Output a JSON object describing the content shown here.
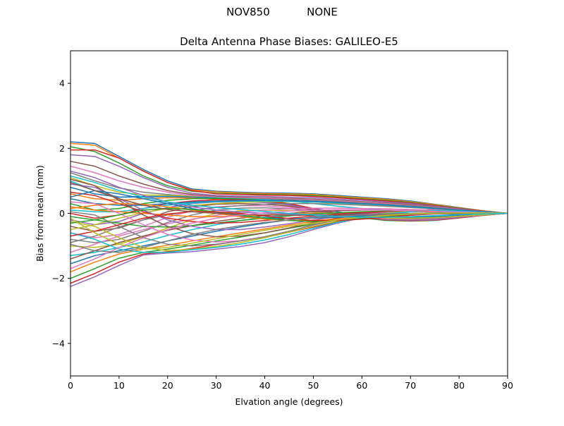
{
  "figure": {
    "suptitle": "NOV850           NONE"
  },
  "chart_data": {
    "type": "line",
    "title": "Delta Antenna Phase Biases: GALILEO-E5",
    "xlabel": "Elvation angle (degrees)",
    "ylabel": "Bias from mean (mm)",
    "xlim": [
      0,
      90
    ],
    "ylim": [
      -5,
      5
    ],
    "xticks": [
      0,
      10,
      20,
      30,
      40,
      50,
      60,
      70,
      80,
      90
    ],
    "yticks": [
      -4,
      -2,
      0,
      2,
      4
    ],
    "ytick_labels": [
      "−4",
      "−2",
      "0",
      "2",
      "4"
    ],
    "grid": false,
    "legend": "none",
    "x": [
      0,
      5,
      10,
      15,
      20,
      25,
      30,
      35,
      40,
      45,
      50,
      55,
      60,
      65,
      70,
      75,
      80,
      85,
      90
    ],
    "colors": [
      "#1f77b4",
      "#ff7f0e",
      "#2ca02c",
      "#d62728",
      "#9467bd",
      "#8c564b",
      "#e377c2",
      "#7f7f7f",
      "#bcbd22",
      "#17becf"
    ],
    "series": [
      {
        "values": [
          2.2,
          2.15,
          1.75,
          1.35,
          1.0,
          0.75,
          0.68,
          0.65,
          0.63,
          0.62,
          0.6,
          0.55,
          0.5,
          0.45,
          0.38,
          0.28,
          0.18,
          0.08,
          0.0
        ]
      },
      {
        "values": [
          2.15,
          2.1,
          1.7,
          1.3,
          0.95,
          0.72,
          0.66,
          0.63,
          0.61,
          0.6,
          0.58,
          0.53,
          0.48,
          0.43,
          0.36,
          0.27,
          0.17,
          0.08,
          0.0
        ]
      },
      {
        "values": [
          2.05,
          1.9,
          1.55,
          1.15,
          0.85,
          0.68,
          0.62,
          0.6,
          0.58,
          0.57,
          0.55,
          0.5,
          0.45,
          0.4,
          0.34,
          0.25,
          0.16,
          0.07,
          0.0
        ]
      },
      {
        "values": [
          1.95,
          1.95,
          1.7,
          1.3,
          0.95,
          0.7,
          0.6,
          0.58,
          0.56,
          0.55,
          0.52,
          0.48,
          0.43,
          0.38,
          0.32,
          0.24,
          0.15,
          0.07,
          0.0
        ]
      },
      {
        "values": [
          1.8,
          1.75,
          1.45,
          1.1,
          0.8,
          0.62,
          0.55,
          0.53,
          0.52,
          0.5,
          0.48,
          0.44,
          0.4,
          0.35,
          0.3,
          0.22,
          0.14,
          0.06,
          0.0
        ]
      },
      {
        "values": [
          1.6,
          1.45,
          1.15,
          0.9,
          0.7,
          0.58,
          0.52,
          0.5,
          0.48,
          0.46,
          0.44,
          0.4,
          0.36,
          0.32,
          0.27,
          0.2,
          0.13,
          0.06,
          0.0
        ]
      },
      {
        "values": [
          1.45,
          1.25,
          1.0,
          0.8,
          0.65,
          0.55,
          0.5,
          0.48,
          0.46,
          0.44,
          0.42,
          0.38,
          0.34,
          0.3,
          0.25,
          0.19,
          0.12,
          0.05,
          0.0
        ]
      },
      {
        "values": [
          1.25,
          1.0,
          0.78,
          0.65,
          0.58,
          0.52,
          0.48,
          0.46,
          0.44,
          0.42,
          0.4,
          0.36,
          0.32,
          0.28,
          0.24,
          0.18,
          0.11,
          0.05,
          0.0
        ]
      },
      {
        "values": [
          1.1,
          0.85,
          0.65,
          0.57,
          0.55,
          0.52,
          0.46,
          0.43,
          0.4,
          0.38,
          0.35,
          0.3,
          0.26,
          0.22,
          0.18,
          0.14,
          0.09,
          0.04,
          0.0
        ]
      },
      {
        "values": [
          1.0,
          0.7,
          0.5,
          0.5,
          0.52,
          0.5,
          0.48,
          0.45,
          0.42,
          0.38,
          0.3,
          0.22,
          0.15,
          0.1,
          0.06,
          0.04,
          0.02,
          0.01,
          0.0
        ]
      },
      {
        "values": [
          0.8,
          0.6,
          0.5,
          0.52,
          0.52,
          0.5,
          0.47,
          0.42,
          0.36,
          0.28,
          0.15,
          0.05,
          -0.05,
          -0.1,
          -0.12,
          -0.1,
          -0.06,
          -0.02,
          0.0
        ]
      },
      {
        "values": [
          0.6,
          0.45,
          0.4,
          0.45,
          0.48,
          0.47,
          0.44,
          0.4,
          0.34,
          0.25,
          0.1,
          -0.05,
          -0.15,
          -0.2,
          -0.22,
          -0.2,
          -0.12,
          -0.05,
          0.0
        ]
      },
      {
        "values": [
          0.3,
          0.1,
          0.15,
          0.3,
          0.4,
          0.45,
          0.46,
          0.44,
          0.4,
          0.3,
          0.15,
          -0.02,
          -0.14,
          -0.22,
          -0.24,
          -0.22,
          -0.14,
          -0.06,
          0.0
        ]
      },
      {
        "values": [
          0.0,
          -0.15,
          -0.05,
          0.15,
          0.3,
          0.38,
          0.42,
          0.42,
          0.38,
          0.3,
          0.15,
          0.0,
          -0.12,
          -0.2,
          -0.23,
          -0.21,
          -0.14,
          -0.06,
          0.0
        ]
      },
      {
        "values": [
          -0.2,
          -0.35,
          -0.25,
          0.0,
          0.18,
          0.3,
          0.35,
          0.36,
          0.33,
          0.26,
          0.12,
          -0.02,
          -0.12,
          -0.19,
          -0.22,
          -0.2,
          -0.13,
          -0.05,
          0.0
        ]
      },
      {
        "values": [
          -0.4,
          -0.55,
          -0.45,
          -0.2,
          0.05,
          0.2,
          0.28,
          0.3,
          0.28,
          0.22,
          0.1,
          -0.03,
          -0.12,
          -0.18,
          -0.2,
          -0.18,
          -0.12,
          -0.05,
          0.0
        ]
      },
      {
        "values": [
          -0.6,
          -0.75,
          -0.65,
          -0.4,
          -0.12,
          0.08,
          0.2,
          0.24,
          0.23,
          0.18,
          0.08,
          -0.04,
          -0.12,
          -0.17,
          -0.19,
          -0.17,
          -0.11,
          -0.05,
          0.0
        ]
      },
      {
        "values": [
          -0.8,
          -0.9,
          -0.8,
          -0.55,
          -0.28,
          -0.05,
          0.1,
          0.16,
          0.17,
          0.14,
          0.06,
          -0.04,
          -0.11,
          -0.15,
          -0.17,
          -0.15,
          -0.1,
          -0.04,
          0.0
        ]
      },
      {
        "values": [
          -1.0,
          -1.05,
          -0.95,
          -0.72,
          -0.45,
          -0.2,
          0.0,
          0.08,
          0.1,
          0.09,
          0.04,
          -0.04,
          -0.1,
          -0.14,
          -0.15,
          -0.13,
          -0.09,
          -0.04,
          0.0
        ]
      },
      {
        "values": [
          -1.3,
          -1.2,
          -1.05,
          -0.88,
          -0.68,
          -0.5,
          -0.35,
          -0.22,
          -0.12,
          -0.05,
          0.0,
          0.02,
          0.02,
          0.01,
          0.0,
          -0.01,
          -0.02,
          -0.01,
          0.0
        ]
      },
      {
        "values": [
          -1.55,
          -1.3,
          -1.15,
          -1.0,
          -0.85,
          -0.7,
          -0.55,
          -0.42,
          -0.3,
          -0.2,
          -0.12,
          -0.06,
          0.0,
          0.04,
          0.06,
          0.06,
          0.04,
          0.02,
          0.0
        ]
      },
      {
        "values": [
          -1.8,
          -1.5,
          -1.25,
          -1.1,
          -0.98,
          -0.85,
          -0.72,
          -0.6,
          -0.48,
          -0.36,
          -0.25,
          -0.15,
          -0.06,
          0.02,
          0.07,
          0.08,
          0.06,
          0.03,
          0.0
        ]
      },
      {
        "values": [
          -2.0,
          -1.7,
          -1.38,
          -1.2,
          -1.1,
          -0.98,
          -0.85,
          -0.73,
          -0.6,
          -0.46,
          -0.33,
          -0.2,
          -0.08,
          0.02,
          0.08,
          0.1,
          0.08,
          0.04,
          0.0
        ]
      },
      {
        "values": [
          -2.15,
          -1.85,
          -1.5,
          -1.25,
          -1.18,
          -1.08,
          -0.96,
          -0.84,
          -0.72,
          -0.58,
          -0.42,
          -0.26,
          -0.12,
          0.0,
          0.08,
          0.12,
          0.1,
          0.05,
          0.0
        ]
      },
      {
        "values": [
          -2.25,
          -1.95,
          -1.6,
          -1.28,
          -1.22,
          -1.18,
          -1.1,
          -1.02,
          -0.9,
          -0.72,
          -0.5,
          -0.3,
          -0.14,
          -0.02,
          0.07,
          0.12,
          0.11,
          0.06,
          0.0
        ]
      },
      {
        "values": [
          -1.4,
          -1.15,
          -0.9,
          -0.7,
          -0.52,
          -0.38,
          -0.25,
          -0.15,
          -0.07,
          0.0,
          0.05,
          0.08,
          0.1,
          0.1,
          0.09,
          0.07,
          0.05,
          0.02,
          0.0
        ]
      },
      {
        "values": [
          -1.2,
          -0.95,
          -0.7,
          -0.5,
          -0.32,
          -0.18,
          -0.06,
          0.04,
          0.1,
          0.14,
          0.16,
          0.16,
          0.15,
          0.14,
          0.12,
          0.1,
          0.07,
          0.03,
          0.0
        ]
      },
      {
        "values": [
          -0.9,
          -0.7,
          -0.42,
          -0.2,
          -0.05,
          0.08,
          0.18,
          0.24,
          0.28,
          0.3,
          0.3,
          0.28,
          0.25,
          0.22,
          0.18,
          0.14,
          0.09,
          0.04,
          0.0
        ]
      },
      {
        "values": [
          -0.5,
          -0.35,
          -0.15,
          0.02,
          0.15,
          0.24,
          0.3,
          0.34,
          0.36,
          0.36,
          0.35,
          0.33,
          0.3,
          0.26,
          0.21,
          0.16,
          0.1,
          0.05,
          0.0
        ]
      },
      {
        "values": [
          0.1,
          0.05,
          0.05,
          0.15,
          0.25,
          0.32,
          0.36,
          0.38,
          0.38,
          0.37,
          0.35,
          0.32,
          0.29,
          0.25,
          0.2,
          0.15,
          0.1,
          0.05,
          0.0
        ]
      },
      {
        "values": [
          0.45,
          0.3,
          0.25,
          0.25,
          0.3,
          0.35,
          0.38,
          0.4,
          0.4,
          0.39,
          0.37,
          0.34,
          0.3,
          0.26,
          0.21,
          0.16,
          0.1,
          0.05,
          0.0
        ]
      },
      {
        "values": [
          0.2,
          0.1,
          0.05,
          0.0,
          -0.05,
          -0.1,
          -0.1,
          -0.08,
          -0.05,
          -0.02,
          0.0,
          0.02,
          0.04,
          0.05,
          0.05,
          0.05,
          0.04,
          0.02,
          0.0
        ]
      },
      {
        "values": [
          -0.1,
          -0.2,
          -0.3,
          -0.4,
          -0.42,
          -0.38,
          -0.3,
          -0.22,
          -0.15,
          -0.08,
          -0.02,
          0.02,
          0.05,
          0.07,
          0.08,
          0.07,
          0.05,
          0.02,
          0.0
        ]
      },
      {
        "values": [
          0.65,
          0.55,
          0.3,
          0.05,
          -0.15,
          -0.25,
          -0.3,
          -0.28,
          -0.22,
          -0.15,
          -0.08,
          -0.02,
          0.02,
          0.05,
          0.06,
          0.06,
          0.04,
          0.02,
          0.0
        ]
      },
      {
        "values": [
          0.9,
          0.8,
          0.45,
          0.1,
          -0.2,
          -0.4,
          -0.5,
          -0.5,
          -0.42,
          -0.32,
          -0.2,
          -0.1,
          -0.02,
          0.03,
          0.06,
          0.06,
          0.04,
          0.02,
          0.0
        ]
      },
      {
        "values": [
          1.05,
          0.85,
          0.4,
          -0.05,
          -0.4,
          -0.62,
          -0.72,
          -0.7,
          -0.6,
          -0.45,
          -0.28,
          -0.14,
          -0.03,
          0.03,
          0.06,
          0.06,
          0.05,
          0.02,
          0.0
        ]
      },
      {
        "values": [
          0.35,
          0.3,
          0.0,
          -0.35,
          -0.65,
          -0.82,
          -0.88,
          -0.84,
          -0.72,
          -0.55,
          -0.35,
          -0.18,
          -0.05,
          0.03,
          0.07,
          0.07,
          0.05,
          0.02,
          0.0
        ]
      },
      {
        "values": [
          0.05,
          -0.05,
          -0.4,
          -0.75,
          -0.95,
          -1.0,
          -0.95,
          -0.85,
          -0.72,
          -0.55,
          -0.36,
          -0.2,
          -0.07,
          0.02,
          0.07,
          0.08,
          0.06,
          0.03,
          0.0
        ]
      },
      {
        "values": [
          -0.25,
          -0.4,
          -0.75,
          -1.05,
          -1.15,
          -1.1,
          -1.02,
          -0.9,
          -0.75,
          -0.58,
          -0.4,
          -0.24,
          -0.1,
          0.0,
          0.06,
          0.08,
          0.07,
          0.03,
          0.0
        ]
      },
      {
        "values": [
          -0.6,
          -0.8,
          -1.1,
          -1.2,
          -1.2,
          -1.12,
          -1.05,
          -0.95,
          -0.82,
          -0.65,
          -0.46,
          -0.28,
          -0.13,
          -0.02,
          0.05,
          0.08,
          0.07,
          0.03,
          0.0
        ]
      },
      {
        "values": [
          0.5,
          0.7,
          0.6,
          0.45,
          0.3,
          0.15,
          0.02,
          -0.08,
          -0.14,
          -0.16,
          -0.15,
          -0.12,
          -0.08,
          -0.05,
          -0.02,
          0.0,
          0.01,
          0.01,
          0.0
        ]
      },
      {
        "values": [
          0.15,
          0.25,
          0.3,
          0.28,
          0.2,
          0.1,
          0.0,
          -0.1,
          -0.18,
          -0.22,
          -0.22,
          -0.18,
          -0.12,
          -0.07,
          -0.03,
          0.0,
          0.01,
          0.01,
          0.0
        ]
      },
      {
        "values": [
          -0.3,
          -0.2,
          -0.05,
          0.1,
          0.15,
          0.12,
          0.05,
          -0.05,
          -0.15,
          -0.22,
          -0.25,
          -0.22,
          -0.16,
          -0.1,
          -0.05,
          -0.01,
          0.01,
          0.01,
          0.0
        ]
      },
      {
        "values": [
          -0.7,
          -0.55,
          -0.35,
          -0.15,
          -0.02,
          0.05,
          0.05,
          0.0,
          -0.08,
          -0.16,
          -0.22,
          -0.22,
          -0.18,
          -0.12,
          -0.06,
          -0.02,
          0.0,
          0.0,
          0.0
        ]
      },
      {
        "values": [
          1.3,
          1.1,
          0.8,
          0.55,
          0.35,
          0.2,
          0.1,
          0.04,
          0.0,
          -0.02,
          -0.04,
          -0.05,
          -0.05,
          -0.04,
          -0.03,
          -0.02,
          -0.01,
          0.0,
          0.0
        ]
      },
      {
        "values": [
          0.95,
          0.7,
          0.45,
          0.25,
          0.12,
          0.05,
          0.0,
          -0.03,
          -0.05,
          -0.06,
          -0.06,
          -0.05,
          -0.04,
          -0.03,
          -0.02,
          -0.01,
          -0.01,
          0.0,
          0.0
        ]
      },
      {
        "values": [
          -1.7,
          -1.4,
          -1.05,
          -0.75,
          -0.5,
          -0.3,
          -0.15,
          -0.05,
          0.02,
          0.07,
          0.1,
          0.11,
          0.11,
          0.1,
          0.08,
          0.06,
          0.04,
          0.02,
          0.0
        ]
      },
      {
        "values": [
          -0.95,
          -1.15,
          -1.2,
          -1.05,
          -0.85,
          -0.65,
          -0.5,
          -0.38,
          -0.28,
          -0.2,
          -0.14,
          -0.09,
          -0.05,
          -0.02,
          0.0,
          0.01,
          0.01,
          0.01,
          0.0
        ]
      },
      {
        "values": [
          -0.15,
          -0.6,
          -0.95,
          -1.1,
          -1.05,
          -0.92,
          -0.78,
          -0.65,
          -0.52,
          -0.4,
          -0.3,
          -0.2,
          -0.12,
          -0.06,
          -0.02,
          0.0,
          0.01,
          0.01,
          0.0
        ]
      },
      {
        "values": [
          1.15,
          0.95,
          0.7,
          0.5,
          0.35,
          0.25,
          0.18,
          0.12,
          0.06,
          0.0,
          -0.05,
          -0.1,
          -0.12,
          -0.12,
          -0.1,
          -0.07,
          -0.04,
          -0.02,
          0.0
        ]
      }
    ]
  }
}
